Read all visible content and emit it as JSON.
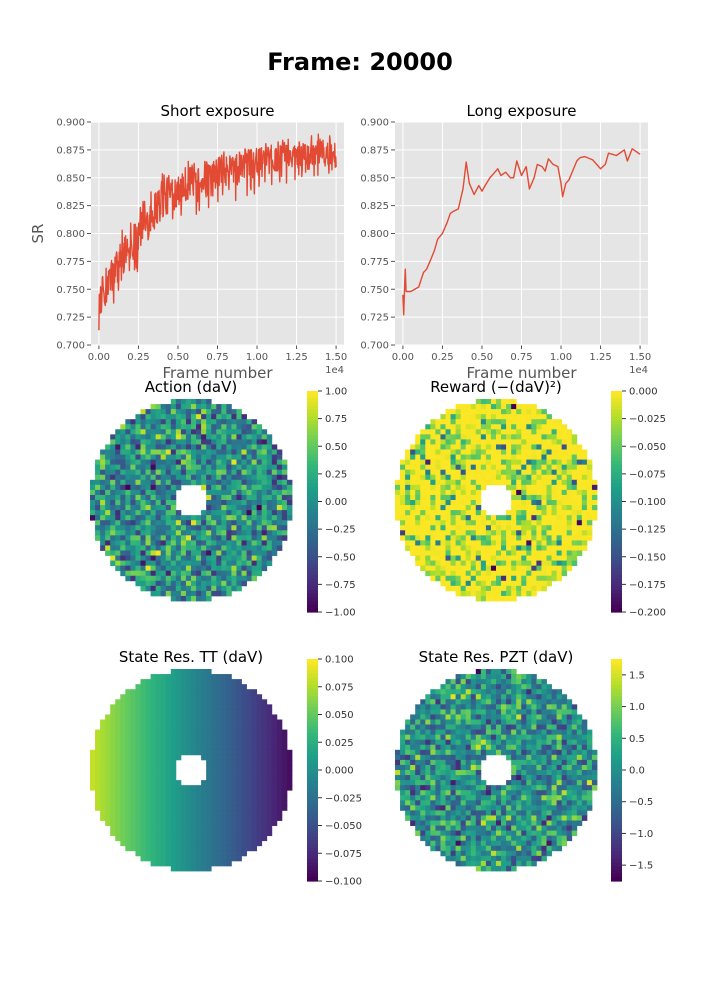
{
  "figure": {
    "title": "Frame: 20000"
  },
  "chart_data": [
    {
      "id": "short_exposure",
      "type": "line",
      "title": "Short exposure",
      "xlabel": "Frame number",
      "ylabel": "SR",
      "x_offset_text": "1e4",
      "xlim": [
        -0.05,
        1.55
      ],
      "ylim": [
        0.7,
        0.9
      ],
      "xticks": [
        0.0,
        0.25,
        0.5,
        0.75,
        1.0,
        1.25,
        1.5
      ],
      "xtick_labels": [
        "0.00",
        "0.25",
        "0.50",
        "0.75",
        "1.00",
        "1.25",
        "1.50"
      ],
      "yticks": [
        0.7,
        0.725,
        0.75,
        0.775,
        0.8,
        0.825,
        0.85,
        0.875,
        0.9
      ],
      "ytick_labels": [
        "0.700",
        "0.725",
        "0.750",
        "0.775",
        "0.800",
        "0.825",
        "0.850",
        "0.875",
        "0.900"
      ],
      "grid": true,
      "line_color": "#E24A33",
      "series": [
        {
          "x": [
            0.0,
            0.02,
            0.05,
            0.1,
            0.15,
            0.2,
            0.25,
            0.3,
            0.35,
            0.4,
            0.45,
            0.5,
            0.55,
            0.6,
            0.7,
            0.8,
            0.9,
            1.0,
            1.1,
            1.2,
            1.25,
            1.3,
            1.35,
            1.4,
            1.45,
            1.5
          ],
          "y": [
            0.74,
            0.745,
            0.755,
            0.765,
            0.78,
            0.79,
            0.8,
            0.81,
            0.82,
            0.83,
            0.835,
            0.84,
            0.845,
            0.848,
            0.852,
            0.856,
            0.86,
            0.863,
            0.866,
            0.87,
            0.871,
            0.872,
            0.872,
            0.873,
            0.873,
            0.873
          ],
          "low": [
            0.713,
            0.72,
            0.725,
            0.73,
            0.745,
            0.755,
            0.765,
            0.775,
            0.78,
            0.79,
            0.8,
            0.805,
            0.81,
            0.815,
            0.82,
            0.825,
            0.828,
            0.83,
            0.84,
            0.845,
            0.848,
            0.85,
            0.85,
            0.852,
            0.85,
            0.855
          ],
          "high": [
            0.775,
            0.78,
            0.785,
            0.795,
            0.805,
            0.815,
            0.825,
            0.84,
            0.848,
            0.855,
            0.86,
            0.865,
            0.868,
            0.87,
            0.872,
            0.875,
            0.878,
            0.88,
            0.882,
            0.885,
            0.886,
            0.888,
            0.888,
            0.89,
            0.891,
            0.888
          ]
        }
      ]
    },
    {
      "id": "long_exposure",
      "type": "line",
      "title": "Long exposure",
      "xlabel": "Frame number",
      "ylabel": "",
      "x_offset_text": "1e4",
      "xlim": [
        -0.05,
        1.55
      ],
      "ylim": [
        0.7,
        0.9
      ],
      "xticks": [
        0.0,
        0.25,
        0.5,
        0.75,
        1.0,
        1.25,
        1.5
      ],
      "xtick_labels": [
        "0.00",
        "0.25",
        "0.50",
        "0.75",
        "1.00",
        "1.25",
        "1.50"
      ],
      "yticks": [
        0.7,
        0.725,
        0.75,
        0.775,
        0.8,
        0.825,
        0.85,
        0.875,
        0.9
      ],
      "ytick_labels": [
        "0.700",
        "0.725",
        "0.750",
        "0.775",
        "0.800",
        "0.825",
        "0.850",
        "0.875",
        "0.900"
      ],
      "grid": true,
      "line_color": "#E24A33",
      "series": [
        {
          "x": [
            0.0,
            0.005,
            0.01,
            0.015,
            0.02,
            0.05,
            0.1,
            0.13,
            0.15,
            0.18,
            0.2,
            0.22,
            0.25,
            0.28,
            0.3,
            0.32,
            0.35,
            0.38,
            0.4,
            0.42,
            0.45,
            0.48,
            0.5,
            0.52,
            0.55,
            0.6,
            0.62,
            0.65,
            0.68,
            0.7,
            0.72,
            0.75,
            0.78,
            0.8,
            0.83,
            0.85,
            0.88,
            0.9,
            0.92,
            0.95,
            0.98,
            1.0,
            1.01,
            1.03,
            1.05,
            1.1,
            1.12,
            1.15,
            1.2,
            1.25,
            1.28,
            1.3,
            1.35,
            1.4,
            1.42,
            1.45,
            1.5
          ],
          "y": [
            0.745,
            0.727,
            0.75,
            0.768,
            0.748,
            0.748,
            0.752,
            0.765,
            0.768,
            0.778,
            0.785,
            0.795,
            0.8,
            0.81,
            0.818,
            0.82,
            0.822,
            0.84,
            0.864,
            0.845,
            0.835,
            0.843,
            0.838,
            0.843,
            0.85,
            0.858,
            0.852,
            0.855,
            0.85,
            0.85,
            0.865,
            0.852,
            0.86,
            0.84,
            0.85,
            0.862,
            0.86,
            0.856,
            0.867,
            0.862,
            0.86,
            0.845,
            0.833,
            0.845,
            0.848,
            0.865,
            0.868,
            0.869,
            0.866,
            0.858,
            0.862,
            0.872,
            0.87,
            0.875,
            0.865,
            0.876,
            0.871
          ]
        }
      ]
    },
    {
      "id": "action",
      "type": "heatmap",
      "title": "Action (daV)",
      "colormap": "viridis",
      "vmin": -1.0,
      "vmax": 1.0,
      "colorbar_ticks": [
        1.0,
        0.75,
        0.5,
        0.25,
        0.0,
        -0.25,
        -0.5,
        -0.75,
        -1.0
      ],
      "colorbar_labels": [
        "1.00",
        "0.75",
        "0.50",
        "0.25",
        "0.00",
        "−0.25",
        "−0.50",
        "−0.75",
        "−1.00"
      ],
      "pattern": "random",
      "center": 0.0,
      "spread": 0.38
    },
    {
      "id": "reward",
      "type": "heatmap",
      "title": "Reward (−(daV)²)",
      "colormap": "viridis",
      "vmin": -0.2,
      "vmax": 0.0,
      "colorbar_ticks": [
        0.0,
        -0.025,
        -0.05,
        -0.075,
        -0.1,
        -0.125,
        -0.15,
        -0.175,
        -0.2
      ],
      "colorbar_labels": [
        "0.000",
        "−0.025",
        "−0.050",
        "−0.075",
        "−0.100",
        "−0.125",
        "−0.150",
        "−0.175",
        "−0.200"
      ],
      "pattern": "reward",
      "center": -0.01,
      "spread": 0.05
    },
    {
      "id": "state_tt",
      "type": "heatmap",
      "title": "State Res. TT (daV)",
      "colormap": "viridis",
      "vmin": -0.1,
      "vmax": 0.1,
      "colorbar_ticks": [
        0.1,
        0.075,
        0.05,
        0.025,
        0.0,
        -0.025,
        -0.05,
        -0.075,
        -0.1
      ],
      "colorbar_labels": [
        "0.100",
        "0.075",
        "0.050",
        "0.025",
        "0.000",
        "−0.025",
        "−0.050",
        "−0.075",
        "−0.100"
      ],
      "pattern": "gradient",
      "left_value": 0.085,
      "right_value": -0.095
    },
    {
      "id": "state_pzt",
      "type": "heatmap",
      "title": "State Res. PZT (daV)",
      "colormap": "viridis",
      "vmin": -1.75,
      "vmax": 1.75,
      "colorbar_ticks": [
        1.5,
        1.0,
        0.5,
        0.0,
        -0.5,
        -1.0,
        -1.5
      ],
      "colorbar_labels": [
        "1.5",
        "1.0",
        "0.5",
        "0.0",
        "−0.5",
        "−1.0",
        "−1.5"
      ],
      "pattern": "random",
      "center": 0.0,
      "spread": 0.6
    }
  ]
}
